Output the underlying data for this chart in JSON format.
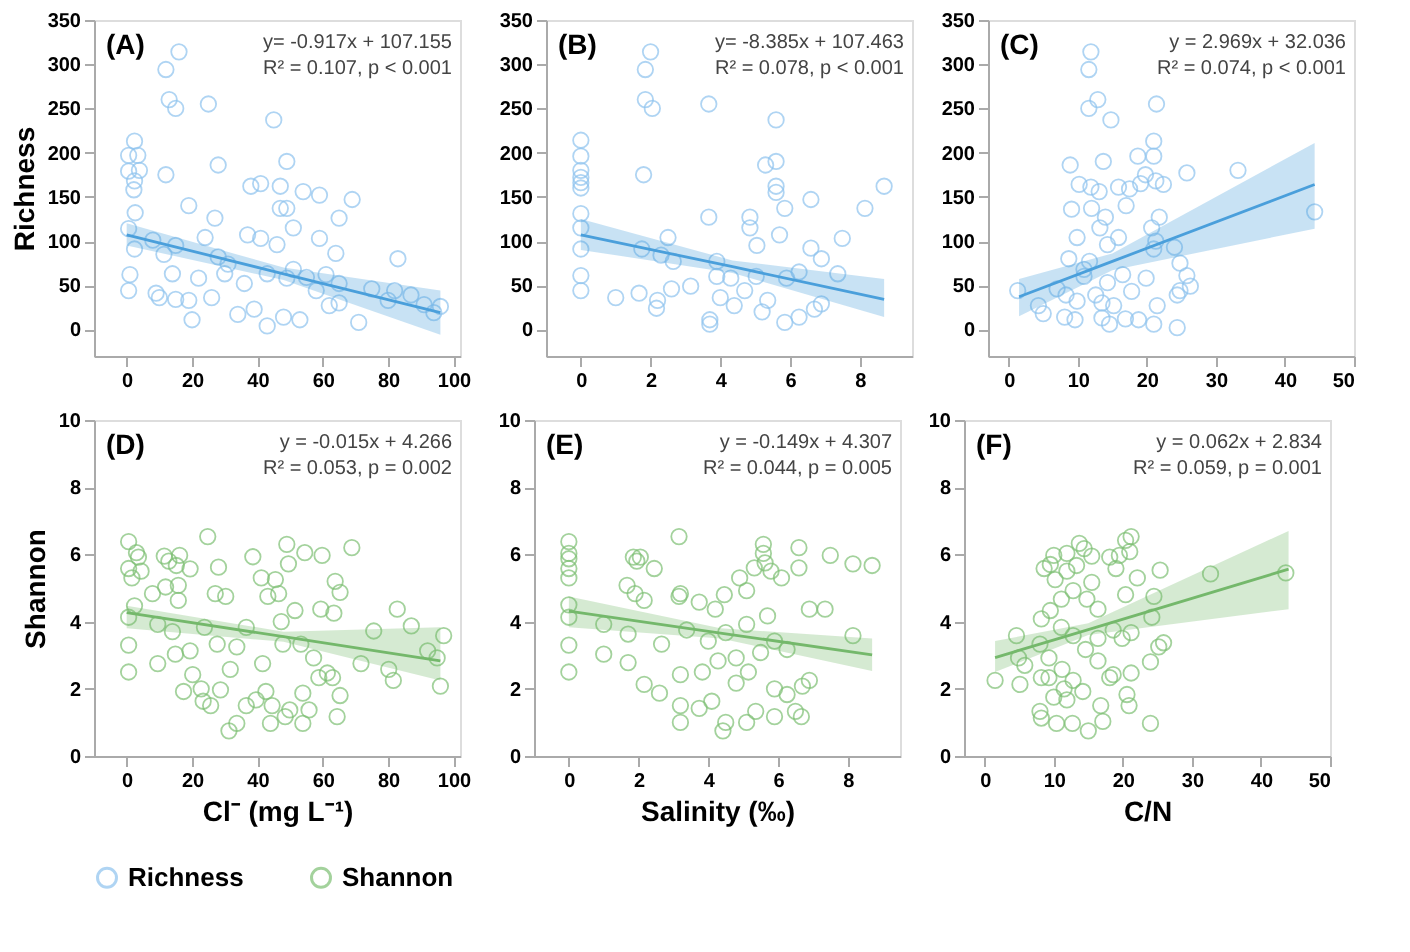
{
  "chart_data": [
    {
      "type": "scatter",
      "title": "(A)",
      "ylabel": "Richness",
      "annotations": [
        "y= -0.917x + 107.155",
        "R² = 0.107,  p < 0.001"
      ],
      "xlim": [
        -10,
        102
      ],
      "xticks": [
        0,
        20,
        40,
        60,
        80,
        100
      ],
      "ylim": [
        -30,
        350
      ],
      "yticks": [
        0,
        50,
        100,
        150,
        200,
        250,
        300,
        350
      ],
      "marker": "circle",
      "line_style": "solid",
      "series": [
        {
          "color": "#8ec3ee",
          "x": [
            16,
            12,
            13,
            15,
            25,
            45,
            2.4,
            0.6,
            3.4,
            0.6,
            3.9,
            2.4,
            2.2,
            2.6,
            12,
            28,
            49,
            38,
            41,
            47,
            54,
            59,
            69,
            27,
            65,
            47,
            49,
            19,
            0.6,
            51,
            37,
            41,
            59,
            8,
            24,
            11.4,
            15,
            2.4,
            83,
            46,
            64,
            1,
            14,
            28,
            31,
            43,
            55,
            61,
            0.6,
            9,
            10,
            15,
            19,
            20,
            26,
            34,
            39,
            43,
            48,
            53,
            62,
            65,
            71,
            75,
            80,
            82,
            87,
            91,
            94,
            96,
            36,
            49,
            51,
            58,
            65,
            22,
            30
          ],
          "values": [
            314,
            294,
            260,
            250,
            255,
            237,
            213,
            197,
            197,
            179,
            180,
            168,
            158,
            132,
            175,
            186,
            190,
            162,
            165,
            162,
            156,
            152,
            147,
            126,
            126,
            137,
            137,
            140,
            114,
            115,
            107,
            103,
            103,
            101,
            104,
            85,
            95,
            91,
            80,
            96,
            86,
            62,
            63,
            82,
            74,
            63,
            59,
            62,
            44,
            41,
            36,
            34,
            33,
            11,
            36,
            17,
            23,
            4,
            14,
            11,
            27,
            30,
            8,
            46,
            33,
            44,
            39,
            28,
            19,
            26,
            52,
            58,
            68,
            44,
            52,
            58,
            63
          ]
        },
        {
          "type": "line",
          "marker": "none",
          "color": "#4a9fdb",
          "x": [
            0,
            48,
            96
          ],
          "values": [
            107,
            63,
            19
          ],
          "lower": [
            95,
            56,
            -6
          ],
          "upper": [
            120,
            70,
            44
          ]
        }
      ]
    },
    {
      "type": "scatter",
      "title": "(B)",
      "annotations": [
        "y= -8.385x + 107.463",
        "R² = 0.078,  p < 0.001"
      ],
      "xlim": [
        -1,
        9.5
      ],
      "xticks": [
        0,
        2,
        4,
        6,
        8
      ],
      "ylim": [
        -30,
        350
      ],
      "yticks": [
        0,
        50,
        100,
        150,
        200,
        250,
        300,
        350
      ],
      "marker": "circle",
      "line_style": "solid",
      "series": [
        {
          "color": "#8ec3ee",
          "x": [
            0,
            0,
            0,
            0,
            0,
            0,
            0,
            0,
            0,
            0,
            0,
            2.0,
            1.85,
            1.85,
            2.05,
            3.67,
            1.8,
            5.6,
            5.3,
            5.6,
            5.6,
            5.6,
            5.85,
            6.6,
            8.15,
            8.7,
            3.67,
            4.85,
            4.85,
            2.5,
            5.7,
            7.5,
            1.75,
            5.05,
            6.6,
            6.9,
            7.37,
            1.0,
            1.67,
            2.2,
            2.17,
            2.6,
            3.15,
            3.7,
            3.7,
            3.9,
            4.0,
            4.4,
            4.7,
            5.2,
            5.36,
            5.85,
            6.26,
            6.7,
            6.9,
            5.9,
            6.26,
            3.9,
            2.65,
            4.3,
            5.03,
            2.3
          ],
          "values": [
            214,
            196,
            180,
            172,
            166,
            160,
            131,
            115,
            91,
            61,
            44,
            314,
            294,
            260,
            250,
            255,
            175,
            237,
            186,
            190,
            162,
            155,
            137,
            147,
            137,
            162,
            127,
            127,
            115,
            104,
            107,
            103,
            91,
            95,
            92,
            80,
            63,
            36,
            41,
            33,
            24,
            46,
            49,
            6,
            11,
            60,
            36,
            27,
            44,
            20,
            33,
            8,
            14,
            23,
            29,
            58,
            65,
            77,
            77,
            58,
            60,
            84
          ]
        },
        {
          "type": "line",
          "marker": "none",
          "color": "#4a9fdb",
          "x": [
            0,
            4.35,
            8.7
          ],
          "values": [
            107,
            71,
            34
          ],
          "lower": [
            90,
            64,
            14
          ],
          "upper": [
            125,
            78,
            57
          ]
        }
      ]
    },
    {
      "type": "scatter",
      "title": "(C)",
      "annotations": [
        "y = 2.969x + 32.036",
        "R² = 0.074,  p < 0.001"
      ],
      "xlim": [
        -3,
        50
      ],
      "xticks": [
        0,
        10,
        20,
        30,
        40,
        50
      ],
      "ylim": [
        -30,
        350
      ],
      "yticks": [
        0,
        50,
        100,
        150,
        200,
        250,
        300,
        350
      ],
      "marker": "circle",
      "legend": "bottom",
      "line_style": "solid",
      "series": [
        {
          "name": "Richness",
          "color": "#8ec3ee",
          "x": [
            11.9,
            11.6,
            12.9,
            11.6,
            21.4,
            14.8,
            21,
            8.9,
            13.7,
            18.7,
            21,
            19.8,
            25.8,
            33.2,
            44.3,
            10.2,
            11.9,
            13.1,
            15.9,
            17.5,
            19.1,
            21.3,
            22.4,
            9.1,
            12,
            17,
            14,
            21.8,
            20.7,
            9.9,
            15.9,
            13.2,
            21.3,
            21,
            24,
            24.8,
            25.8,
            26.3,
            24.8,
            24.4,
            1.3,
            4.3,
            5,
            7,
            8.7,
            8.1,
            9.6,
            14.6,
            13.5,
            16.9,
            18.8,
            21,
            24.4,
            21.5,
            10.9,
            14.3,
            16.5,
            17.8,
            19.9,
            8.3,
            9.9,
            12.6,
            13.5,
            15.2,
            11.7,
            14.3,
            10.9
          ],
          "values": [
            314,
            294,
            260,
            250,
            255,
            237,
            213,
            186,
            190,
            196,
            196,
            175,
            177,
            180,
            133,
            164,
            161,
            156,
            161,
            159,
            165,
            168,
            164,
            136,
            137,
            140,
            127,
            127,
            115,
            104,
            104,
            115,
            100,
            91,
            93,
            75,
            61,
            49,
            44,
            39,
            44,
            27,
            18,
            46,
            80,
            14,
            11,
            6,
            13,
            12,
            11,
            6,
            2,
            27,
            60,
            53,
            62,
            43,
            58,
            39,
            32,
            39,
            30,
            27,
            77,
            96,
            68
          ]
        },
        {
          "type": "line",
          "marker": "none",
          "color": "#4a9fdb",
          "x": [
            1.5,
            15,
            44.3
          ],
          "values": [
            37,
            77,
            164
          ],
          "lower": [
            15,
            67,
            114
          ],
          "upper": [
            57,
            86,
            211
          ]
        }
      ]
    },
    {
      "type": "scatter",
      "title": "(D)",
      "ylabel": "Shannon",
      "xlabel": "Cl⁻ (mg L⁻¹)",
      "annotations": [
        "y = -0.015x + 4.266",
        "R² = 0.053,  p = 0.002"
      ],
      "xlim": [
        -10,
        102
      ],
      "xticks": [
        0,
        20,
        40,
        60,
        80,
        100
      ],
      "ylim": [
        0,
        10
      ],
      "yticks": [
        0,
        2,
        4,
        6,
        8,
        10
      ],
      "marker": "circle",
      "line_style": "solid",
      "series": [
        {
          "color": "#7dbf73",
          "x": [
            0.6,
            0.6,
            1.6,
            3.6,
            3,
            4.4,
            0.6,
            2.4,
            0.6,
            0.6,
            7.9,
            11.5,
            12.9,
            15.2,
            16.2,
            19.4,
            11.9,
            15.8,
            15.8,
            24.8,
            28.1,
            27.1,
            30.3,
            38.6,
            41.2,
            43.2,
            49,
            49.5,
            54.5,
            59.8,
            68.9,
            63.8,
            59.4,
            63.4,
            65.3,
            45.5,
            46.5,
            51.5,
            9.5,
            14,
            19.4,
            14.9,
            9.5,
            20.2,
            17.4,
            22.8,
            23.4,
            25.7,
            28.7,
            31.3,
            33.7,
            36.6,
            39.6,
            42.6,
            44.5,
            44,
            48.5,
            49.9,
            53.9,
            55.8,
            53.9,
            58.8,
            61.4,
            63,
            64.4,
            65.3,
            71.7,
            75.6,
            80.2,
            81.6,
            82.8,
            87.1,
            92.1,
            95,
            96,
            97,
            33.7,
            36.6,
            41.6,
            47.8,
            53.3,
            57.2,
            27.7,
            23.8,
            31.7,
            47.3
          ],
          "values": [
            6.38,
            5.58,
            5.3,
            5.92,
            6.05,
            5.5,
            4.13,
            4.47,
            3.3,
            2.5,
            4.83,
            5.95,
            5.8,
            5.67,
            5.97,
            5.57,
            5.03,
            5.08,
            4.63,
            6.53,
            5.62,
            4.83,
            4.75,
            5.93,
            5.3,
            4.75,
            6.3,
            5.72,
            6.05,
            5.97,
            6.2,
            5.2,
            4.37,
            4.25,
            4.87,
            5.25,
            4.83,
            4.33,
            3.92,
            3.7,
            3.13,
            3.03,
            2.75,
            2.42,
            1.92,
            2,
            1.63,
            1.5,
            1.97,
            0.75,
            0.97,
            1.5,
            1.67,
            1.92,
            1.5,
            0.97,
            1.17,
            1.37,
            0.97,
            1.37,
            1.87,
            2.33,
            2.47,
            2.33,
            1.17,
            1.8,
            2.75,
            3.72,
            2.58,
            2.25,
            4.37,
            3.87,
            3.13,
            2.92,
            2.08,
            3.58,
            3.25,
            3.83,
            2.75,
            3.33,
            3.33,
            2.92,
            3.33,
            3.83,
            2.58,
            4.0
          ]
        },
        {
          "type": "line",
          "marker": "none",
          "color": "#74b86b",
          "x": [
            0,
            48,
            96
          ],
          "values": [
            4.27,
            3.55,
            2.83
          ],
          "lower": [
            3.8,
            3.4,
            2.25
          ],
          "upper": [
            4.47,
            3.7,
            3.83
          ]
        }
      ]
    },
    {
      "type": "scatter",
      "title": "(E)",
      "xlabel": "Salinity (‰)",
      "annotations": [
        "y = -0.149x + 4.307",
        "R² = 0.044,  p = 0.005"
      ],
      "xlim": [
        -1,
        9.5
      ],
      "xticks": [
        0,
        2,
        4,
        6,
        8
      ],
      "ylim": [
        0,
        10
      ],
      "yticks": [
        0,
        2,
        4,
        6,
        8,
        10
      ],
      "marker": "circle",
      "line_style": "solid",
      "series": [
        {
          "color": "#7dbf73",
          "x": [
            0,
            0,
            0,
            0,
            0,
            0,
            0,
            0,
            0,
            1.0,
            1.0,
            1.7,
            1.7,
            1.85,
            1.95,
            2.05,
            2.45,
            1.67,
            1.9,
            2.16,
            3.16,
            3.2,
            3.16,
            3.74,
            4.2,
            4.46,
            4.9,
            5.1,
            5.32,
            5.58,
            5.58,
            5.63,
            5.8,
            6.1,
            6.6,
            7.5,
            8.15,
            8.7,
            6.6,
            6.9,
            7.35,
            8.15,
            2.16,
            2.6,
            3.2,
            3.2,
            3.74,
            4.1,
            4.42,
            4.5,
            5.1,
            5.36,
            5.9,
            6.5,
            6.67,
            6.7,
            6.26,
            5.9,
            6.9,
            3.2,
            3.83,
            4.28,
            4.8,
            5.15,
            5.5,
            5.9,
            6.26,
            4.5,
            5.1,
            5.7,
            2.66,
            3.38,
            4.0,
            4.8
          ],
          "values": [
            6.38,
            6.03,
            5.87,
            5.58,
            5.3,
            4.5,
            4.13,
            3.3,
            2.5,
            3.92,
            3.03,
            3.63,
            2.78,
            5.92,
            5.8,
            5.92,
            5.58,
            5.08,
            4.83,
            4.63,
            6.53,
            4.83,
            4.75,
            4.58,
            4.37,
            4.8,
            5.3,
            4.92,
            5.6,
            6.3,
            6.03,
            5.75,
            5.5,
            5.3,
            6.2,
            5.97,
            5.72,
            5.67,
            5.6,
            4.37,
            4.37,
            3.58,
            2.13,
            1.87,
            1.5,
            1.0,
            1.42,
            1.63,
            0.75,
            1.0,
            1.0,
            1.33,
            1.17,
            1.33,
            1.17,
            2.08,
            1.83,
            2.0,
            2.25,
            2.42,
            2.5,
            2.83,
            2.92,
            2.5,
            3.08,
            3.42,
            3.17,
            3.67,
            3.92,
            4.17,
            3.33,
            3.75,
            3.42,
            2.17
          ]
        },
        {
          "type": "line",
          "marker": "none",
          "color": "#74b86b",
          "x": [
            0,
            4.35,
            8.7
          ],
          "values": [
            4.31,
            3.66,
            3.01
          ],
          "lower": [
            3.83,
            3.5,
            2.53
          ],
          "upper": [
            4.75,
            3.8,
            3.5
          ]
        }
      ]
    },
    {
      "type": "scatter",
      "title": "(F)",
      "xlabel": "C/N",
      "annotations": [
        "y = 0.062x + 2.834",
        "R² = 0.059,  p = 0.001"
      ],
      "xlim": [
        -3,
        50
      ],
      "xticks": [
        0,
        10,
        20,
        30,
        40,
        50
      ],
      "ylim": [
        0,
        10
      ],
      "yticks": [
        0,
        2,
        4,
        6,
        8,
        10
      ],
      "marker": "circle",
      "legend": "bottom",
      "line_style": "solid",
      "series": [
        {
          "name": "Shannon",
          "color": "#7dbf73",
          "x": [
            1.5,
            4.6,
            4.9,
            5.1,
            5.8,
            8.2,
            8,
            8.2,
            8.6,
            9.5,
            10,
            11.9,
            13.7,
            14.4,
            15.5,
            18.1,
            19.5,
            20.4,
            21.2,
            21,
            19,
            22.1,
            25.4,
            32.7,
            43.6,
            20.4,
            24.5,
            24.2,
            25.9,
            25.2,
            24,
            24,
            20.6,
            20.9,
            21.2,
            18.6,
            16.8,
            17.1,
            15,
            12.7,
            10.4,
            10,
            11.9,
            14.2,
            12.8,
            11.2,
            9.3,
            8,
            8.2,
            9.5,
            11.1,
            12.8,
            14.8,
            16.4,
            18.6,
            19.9,
            21.2,
            10.2,
            11.9,
            13.3,
            15.5,
            11.1,
            12.8,
            14.6,
            16.4,
            9.3,
            11.5,
            16.4,
            18.1
          ],
          "values": [
            2.25,
            3.58,
            2.92,
            2.13,
            2.7,
            2.33,
            1.33,
            1.13,
            5.58,
            5.7,
            5.97,
            6.03,
            6.33,
            6.17,
            5.95,
            5.92,
            5.97,
            6.42,
            6.53,
            6.08,
            5.58,
            5.3,
            5.53,
            5.42,
            5.45,
            4.8,
            4.75,
            4.13,
            3.37,
            3.25,
            2.8,
            0.97,
            1.83,
            1.5,
            2.47,
            2.42,
            1.5,
            1.03,
            0.75,
            0.97,
            0.97,
            1.75,
            1.67,
            1.92,
            2.25,
            2.58,
            2.92,
            3.33,
            4.08,
            4.33,
            4.67,
            4.92,
            4.67,
            4.37,
            3.75,
            3.5,
            3.67,
            5.25,
            5.5,
            5.67,
            5.17,
            3.83,
            3.58,
            3.17,
            2.83,
            2.33,
            2.0,
            3.5,
            2.33
          ]
        },
        {
          "type": "line",
          "marker": "none",
          "color": "#74b86b",
          "x": [
            1.5,
            15,
            44
          ],
          "values": [
            2.93,
            3.76,
            5.56
          ],
          "lower": [
            2.5,
            3.6,
            4.37
          ],
          "upper": [
            3.42,
            3.95,
            6.7
          ]
        }
      ]
    }
  ]
}
